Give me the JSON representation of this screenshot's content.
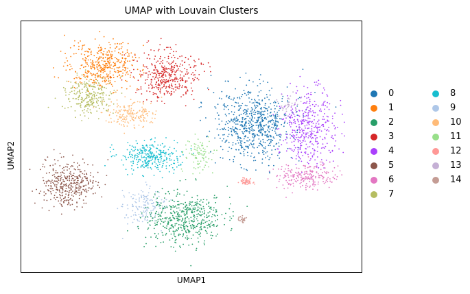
{
  "chart_data": {
    "type": "scatter",
    "title": "UMAP with Louvain Clusters",
    "xlabel": "UMAP1",
    "ylabel": "UMAP2",
    "grid": false,
    "ticks": false,
    "legend_placement": "right",
    "series": [
      {
        "name": "0",
        "color": "#1f77b4"
      },
      {
        "name": "1",
        "color": "#ff7f0e"
      },
      {
        "name": "2",
        "color": "#279e68"
      },
      {
        "name": "3",
        "color": "#d62728"
      },
      {
        "name": "4",
        "color": "#aa40fc"
      },
      {
        "name": "5",
        "color": "#8c564b"
      },
      {
        "name": "6",
        "color": "#e377c2"
      },
      {
        "name": "7",
        "color": "#b5bd61"
      },
      {
        "name": "8",
        "color": "#17becf"
      },
      {
        "name": "9",
        "color": "#aec7e8"
      },
      {
        "name": "10",
        "color": "#ffbb78"
      },
      {
        "name": "11",
        "color": "#98df8a"
      },
      {
        "name": "12",
        "color": "#ff9896"
      },
      {
        "name": "13",
        "color": "#c5b0d5"
      },
      {
        "name": "14",
        "color": "#c49c94"
      }
    ]
  }
}
